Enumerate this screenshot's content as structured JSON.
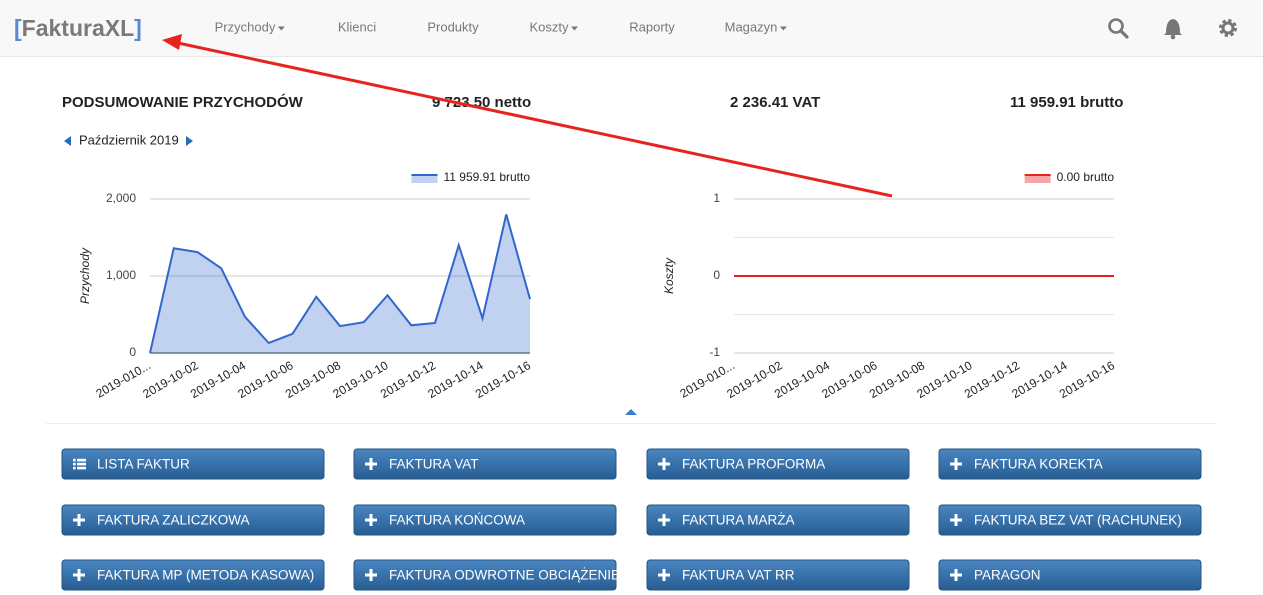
{
  "nav": {
    "brand_open": "[",
    "brand": "FakturaXL",
    "brand_close": "]",
    "items": [
      {
        "label": "Przychody",
        "dropdown": true
      },
      {
        "label": "Klienci",
        "dropdown": false
      },
      {
        "label": "Produkty",
        "dropdown": false
      },
      {
        "label": "Koszty",
        "dropdown": true
      },
      {
        "label": "Raporty",
        "dropdown": false
      },
      {
        "label": "Magazyn",
        "dropdown": true
      }
    ]
  },
  "summary": {
    "title": "PODSUMOWANIE PRZYCHODÓW",
    "netto": "9 723.50 netto",
    "vat": "2 236.41 VAT",
    "brutto": "11 959.91 brutto"
  },
  "period": "Październik 2019",
  "chart_data": [
    {
      "type": "area",
      "y_label": "Przychody",
      "categories": [
        "2019-010...",
        null,
        "2019-10-02",
        null,
        "2019-10-04",
        null,
        "2019-10-06",
        null,
        "2019-10-08",
        null,
        "2019-10-10",
        null,
        "2019-10-12",
        null,
        "2019-10-14",
        null,
        "2019-10-16"
      ],
      "series": [
        {
          "name": "11 959.91 brutto",
          "color": "#3366cc",
          "values": [
            0,
            1360,
            1310,
            1100,
            470,
            130,
            250,
            730,
            350,
            400,
            750,
            360,
            390,
            1400,
            450,
            1800,
            700
          ]
        }
      ],
      "ylim": [
        0,
        2000
      ],
      "yticks": [
        0,
        {
          "value": 1000,
          "label": "1,000"
        },
        {
          "value": 2000,
          "label": "2,000"
        }
      ],
      "grid": true,
      "legend": "top-right"
    },
    {
      "type": "line",
      "y_label": "Koszty",
      "categories": [
        "2019-010...",
        null,
        "2019-10-02",
        null,
        "2019-10-04",
        null,
        "2019-10-06",
        null,
        "2019-10-08",
        null,
        "2019-10-10",
        null,
        "2019-10-12",
        null,
        "2019-10-14",
        null,
        "2019-10-16"
      ],
      "series": [
        {
          "name": "0.00 brutto",
          "color": "#e8231f",
          "values": [
            0,
            0,
            0,
            0,
            0,
            0,
            0,
            0,
            0,
            0,
            0,
            0,
            0,
            0,
            0,
            0,
            0
          ]
        }
      ],
      "ylim": [
        -1,
        1
      ],
      "yticks": [
        -1,
        0,
        1
      ],
      "minor_yticks": [
        -0.5,
        0.5
      ],
      "grid": true,
      "legend": "top-right"
    }
  ],
  "buttons": [
    {
      "label": "LISTA FAKTUR",
      "icon": "list"
    },
    {
      "label": "FAKTURA VAT",
      "icon": "plus"
    },
    {
      "label": "FAKTURA PROFORMA",
      "icon": "plus"
    },
    {
      "label": "FAKTURA KOREKTA",
      "icon": "plus"
    },
    {
      "label": "FAKTURA ZALICZKOWA",
      "icon": "plus"
    },
    {
      "label": "FAKTURA KOŃCOWA",
      "icon": "plus"
    },
    {
      "label": "FAKTURA MARŻA",
      "icon": "plus"
    },
    {
      "label": "FAKTURA BEZ VAT (RACHUNEK)",
      "icon": "plus"
    },
    {
      "label": "FAKTURA MP (METODA KASOWA)",
      "icon": "plus"
    },
    {
      "label": "FAKTURA ODWROTNE OBCIĄŻENIE",
      "icon": "plus"
    },
    {
      "label": "FAKTURA VAT RR",
      "icon": "plus"
    },
    {
      "label": "PARAGON",
      "icon": "plus"
    }
  ]
}
